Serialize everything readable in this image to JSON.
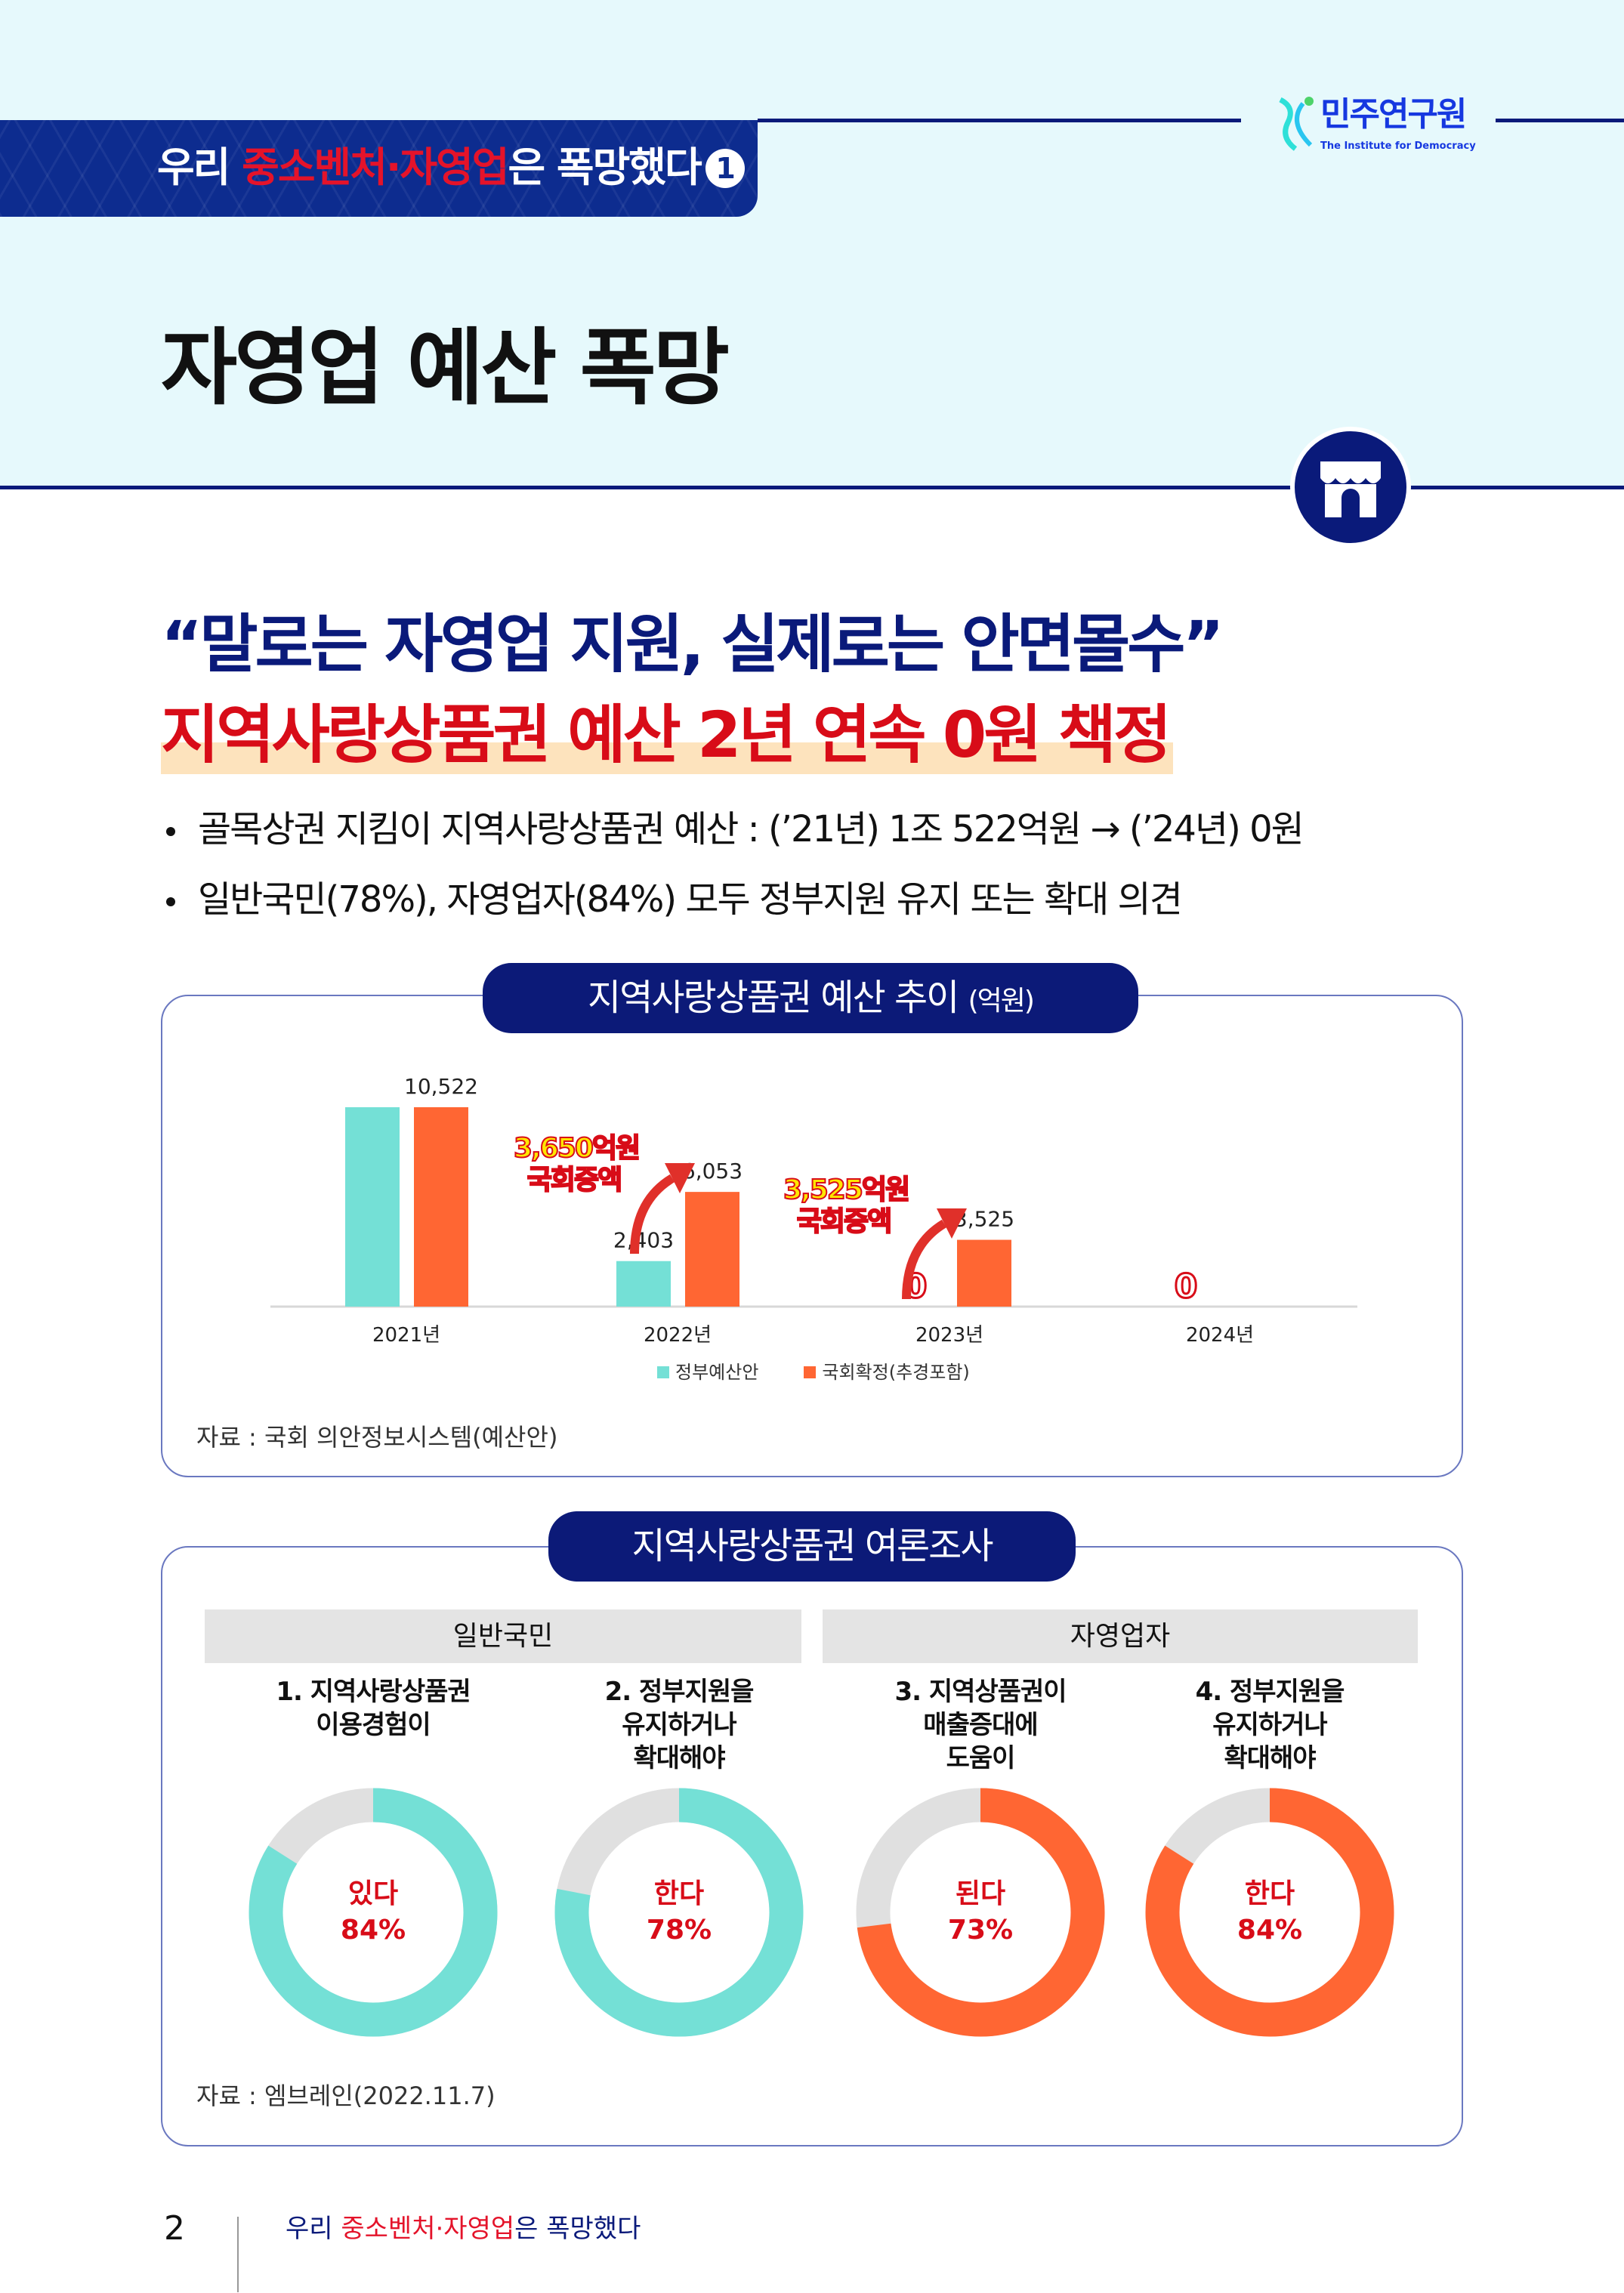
{
  "header": {
    "banner_prefix": "우리 ",
    "banner_highlight": "중소벤처·자영업",
    "banner_suffix": "은 폭망했다",
    "banner_number": "1",
    "logo_name": "민주연구원",
    "logo_sub": "The Institute for Democracy",
    "page_title": "자영업 예산 폭망"
  },
  "headline": {
    "quote": "“말로는 자영업 지원, 실제로는 안면몰수”",
    "main": "지역사랑상품권 예산 2년 연속 0원 책정"
  },
  "bullets": [
    "골목상권 지킴이 지역사랑상품권 예산 : (’21년) 1조 522억원 → (’24년) 0원",
    "일반국민(78%), 자영업자(84%) 모두 정부지원 유지 또는 확대 의견"
  ],
  "colors": {
    "teal": "#74e0d6",
    "orange": "#ff6633",
    "navy": "#0c1a78",
    "red": "#d80c18",
    "gray": "#e0e0e0"
  },
  "chart_data": [
    {
      "type": "bar",
      "title": "지역사랑상품권 예산 추이",
      "unit": "(억원)",
      "categories": [
        "2021년",
        "2022년",
        "2023년",
        "2024년"
      ],
      "series": [
        {
          "name": "정부예산안",
          "values": [
            10522,
            2403,
            0,
            0
          ],
          "labels": [
            "",
            "2,403",
            "0",
            "0"
          ]
        },
        {
          "name": "국회확정(추경포함)",
          "values": [
            10522,
            6053,
            3525,
            0
          ],
          "labels": [
            "10,522",
            "6,053",
            "3,525",
            ""
          ]
        }
      ],
      "annotations": [
        {
          "text": [
            "3,650억원",
            "국회증액"
          ],
          "category": "2022년"
        },
        {
          "text": [
            "3,525억원",
            "국회증액"
          ],
          "category": "2023년"
        }
      ],
      "ylim": [
        0,
        10522
      ],
      "source": "자료 : 국회 의안정보시스템(예산안)"
    },
    {
      "type": "pie",
      "title": "지역사랑상품권 여론조사",
      "groups": [
        "일반국민",
        "자영업자"
      ],
      "items": [
        {
          "question": [
            "1. 지역사랑상품권",
            "이용경험이"
          ],
          "answer": "있다",
          "value": 84,
          "color": "teal"
        },
        {
          "question": [
            "2. 정부지원을",
            "유지하거나",
            "확대해야"
          ],
          "answer": "한다",
          "value": 78,
          "color": "teal"
        },
        {
          "question": [
            "3. 지역상품권이",
            "매출증대에",
            "도움이"
          ],
          "answer": "된다",
          "value": 73,
          "color": "orange"
        },
        {
          "question": [
            "4. 정부지원을",
            "유지하거나",
            "확대해야"
          ],
          "answer": "한다",
          "value": 84,
          "color": "orange"
        }
      ],
      "value_labels": [
        "84%",
        "78%",
        "73%",
        "84%"
      ],
      "source": "자료 : 엠브레인(2022.11.7)"
    }
  ],
  "footer": {
    "page_number": "2",
    "prefix": "우리 ",
    "highlight": "중소벤처·자영업",
    "suffix": "은 폭망했다"
  }
}
